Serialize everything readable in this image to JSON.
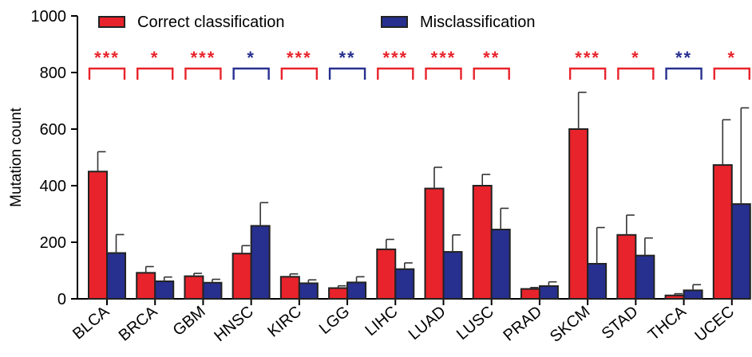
{
  "chart_data": {
    "type": "bar",
    "ylabel": "Mutation count",
    "ylim": [
      0,
      1000
    ],
    "yticks": [
      0,
      200,
      400,
      600,
      800,
      1000
    ],
    "categories": [
      "BLCA",
      "BRCA",
      "GBM",
      "HNSC",
      "KIRC",
      "LGG",
      "LIHC",
      "LUAD",
      "LUSC",
      "PRAD",
      "SKCM",
      "STAD",
      "THCA",
      "UCEC"
    ],
    "series": [
      {
        "name": "Correct classification",
        "color": "#e8232b",
        "values": [
          450,
          92,
          80,
          160,
          78,
          38,
          175,
          390,
          400,
          35,
          600,
          226,
          12,
          473
        ],
        "errors": [
          70,
          22,
          10,
          28,
          10,
          8,
          35,
          75,
          40,
          5,
          130,
          70,
          6,
          160
        ]
      },
      {
        "name": "Misclassification",
        "color": "#27308f",
        "values": [
          162,
          62,
          57,
          258,
          55,
          58,
          105,
          166,
          245,
          45,
          124,
          153,
          30,
          335
        ],
        "errors": [
          65,
          15,
          12,
          82,
          12,
          20,
          22,
          60,
          75,
          15,
          128,
          62,
          20,
          340
        ]
      }
    ],
    "significance": [
      {
        "category": "BLCA",
        "label": "***",
        "color": "#e8232b"
      },
      {
        "category": "BRCA",
        "label": "*",
        "color": "#e8232b"
      },
      {
        "category": "GBM",
        "label": "***",
        "color": "#e8232b"
      },
      {
        "category": "HNSC",
        "label": "*",
        "color": "#27308f"
      },
      {
        "category": "KIRC",
        "label": "***",
        "color": "#e8232b"
      },
      {
        "category": "LGG",
        "label": "**",
        "color": "#27308f"
      },
      {
        "category": "LIHC",
        "label": "***",
        "color": "#e8232b"
      },
      {
        "category": "LUAD",
        "label": "***",
        "color": "#e8232b"
      },
      {
        "category": "LUSC",
        "label": "**",
        "color": "#e8232b"
      },
      {
        "category": "SKCM",
        "label": "***",
        "color": "#e8232b"
      },
      {
        "category": "STAD",
        "label": "*",
        "color": "#e8232b"
      },
      {
        "category": "THCA",
        "label": "**",
        "color": "#27308f"
      },
      {
        "category": "UCEC",
        "label": "*",
        "color": "#e8232b"
      }
    ],
    "legend_position": "top",
    "grid": false
  }
}
